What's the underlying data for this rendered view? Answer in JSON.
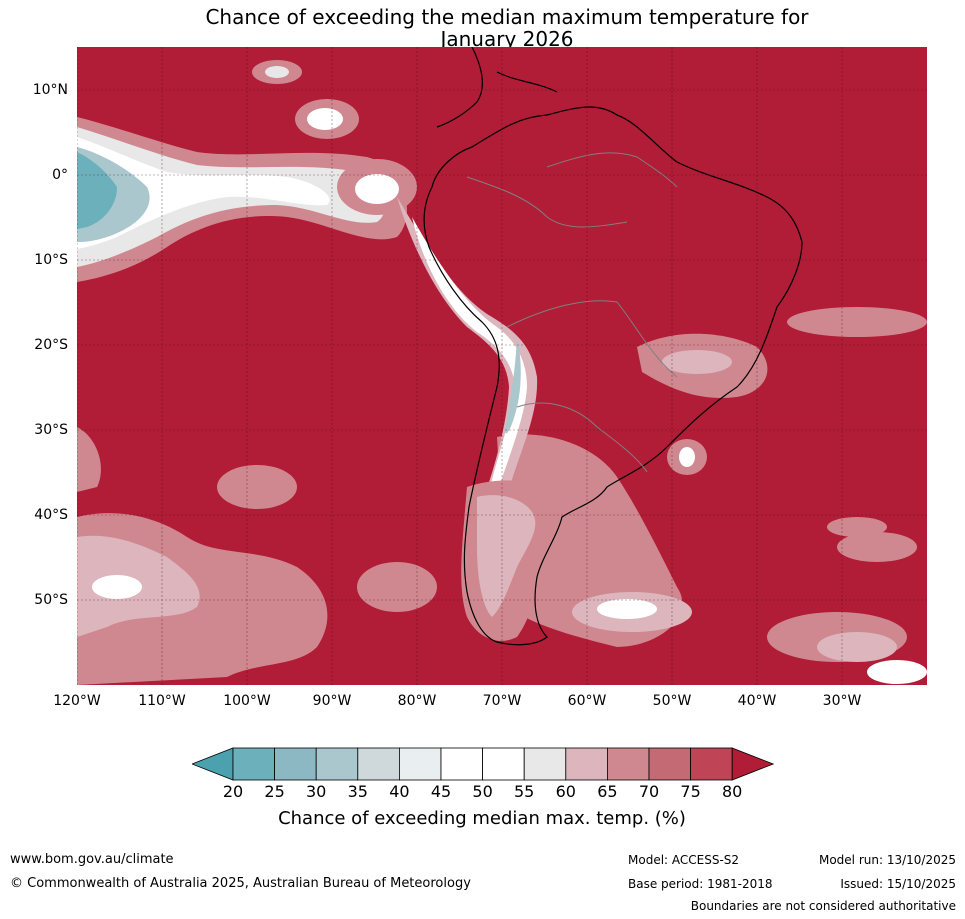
{
  "title_line1": "Chance of exceeding the median maximum temperature for",
  "title_line2": "January 2026",
  "lat_labels": [
    "10°N",
    "0°",
    "10°S",
    "20°S",
    "30°S",
    "40°S",
    "50°S"
  ],
  "lon_labels": [
    "120°W",
    "110°W",
    "100°W",
    "90°W",
    "80°W",
    "70°W",
    "60°W",
    "50°W",
    "40°W",
    "30°W"
  ],
  "colorbar": {
    "ticks": [
      "20",
      "25",
      "30",
      "35",
      "40",
      "45",
      "50",
      "55",
      "60",
      "65",
      "70",
      "75",
      "80"
    ],
    "label": "Chance of exceeding median max. temp. (%)",
    "colors": [
      "#4ba1ae",
      "#6bb0bb",
      "#8bb8c3",
      "#a9c7cd",
      "#cfd9dc",
      "#e9eff1",
      "#ffffff",
      "#ffffff",
      "#e8e8e8",
      "#ddb6bd",
      "#d08890",
      "#c46a75",
      "#be4456",
      "#b11c37"
    ]
  },
  "map": {
    "background_color": "#b11c37",
    "region": "South America",
    "extent": {
      "lon": [
        -120,
        -20
      ],
      "lat": [
        -60,
        15
      ]
    }
  },
  "footer": {
    "website": "www.bom.gov.au/climate",
    "copyright": "© Commonwealth of Australia 2025, Australian Bureau of Meteorology",
    "model": "Model: ACCESS-S2",
    "base_period": "Base period: 1981-2018",
    "model_run": "Model run: 13/10/2025",
    "issued": "Issued: 15/10/2025",
    "disclaimer": "Boundaries are not considered authoritative"
  }
}
